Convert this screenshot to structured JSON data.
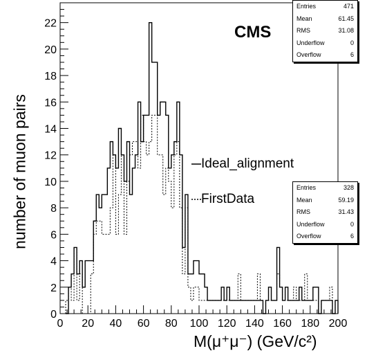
{
  "chart_data": {
    "type": "histogram",
    "title": "",
    "xlabel": "M(μ⁺μ⁻) (GeV/c²)",
    "ylabel": "number of muon pairs",
    "xlim": [
      0,
      200
    ],
    "ylim": [
      0,
      23.5
    ],
    "x_ticks": [
      0,
      20,
      40,
      60,
      80,
      100,
      120,
      140,
      160,
      180,
      200
    ],
    "y_ticks": [
      0,
      2,
      4,
      6,
      8,
      10,
      12,
      14,
      16,
      18,
      20,
      22
    ],
    "bin_edges_start": 4,
    "bin_width": 2,
    "series": [
      {
        "name": "Ideal_alignment",
        "style": "solid",
        "values": [
          0,
          2,
          3,
          5,
          3,
          4,
          2,
          4,
          4,
          4,
          7,
          9,
          8,
          9,
          9,
          11,
          13,
          12,
          11,
          14,
          12,
          10,
          13,
          9,
          11,
          12,
          16,
          13,
          15,
          15,
          22,
          19,
          19,
          15,
          16,
          16,
          15,
          11,
          12,
          13,
          16,
          12,
          5,
          9,
          3,
          3,
          4,
          4,
          3,
          3,
          2,
          1,
          1,
          1,
          1,
          1,
          2,
          1,
          2,
          1,
          1,
          1,
          1,
          1,
          1,
          1,
          1,
          1,
          1,
          1,
          1,
          0,
          1,
          2,
          1,
          1,
          5,
          2,
          1,
          2,
          1,
          1,
          1,
          1,
          2,
          1,
          1,
          1,
          1,
          2,
          2,
          0,
          1,
          1,
          1,
          1,
          0,
          1
        ]
      },
      {
        "name": "FirstData",
        "style": "dotted",
        "values": [
          1,
          2,
          1,
          5,
          1,
          3,
          0,
          0,
          0,
          3,
          6,
          7,
          7,
          6,
          6,
          6,
          8,
          12,
          6,
          9,
          12,
          6,
          10,
          12,
          13,
          13,
          11,
          15,
          13,
          12,
          13,
          15,
          15,
          12,
          12,
          9,
          11,
          10,
          8,
          12,
          13,
          8,
          3,
          8,
          2,
          1,
          2,
          2,
          1,
          1,
          1,
          1,
          1,
          1,
          1,
          1,
          1,
          1,
          1,
          1,
          1,
          1,
          3,
          1,
          1,
          1,
          1,
          1,
          1,
          3,
          1,
          0,
          1,
          1,
          1,
          1,
          3,
          2,
          1,
          1,
          1,
          1,
          2,
          1,
          1,
          1,
          3,
          1,
          1,
          1,
          1,
          0,
          1,
          1,
          1,
          2,
          0,
          1
        ]
      }
    ],
    "stats": [
      {
        "series": "Ideal_alignment",
        "entries": 471,
        "mean": 61.45,
        "rms": 31.08,
        "underflow": 0,
        "overflow": 6
      },
      {
        "series": "FirstData",
        "entries": 328,
        "mean": 59.19,
        "rms": 31.43,
        "underflow": 0,
        "overflow": 6
      }
    ],
    "experiment": "CMS",
    "grid": false,
    "legend": "center-right"
  },
  "stats_labels": {
    "entries": "Entries",
    "mean": "Mean",
    "rms": "RMS",
    "underflow": "Underflow",
    "overflow": "Overflow"
  }
}
